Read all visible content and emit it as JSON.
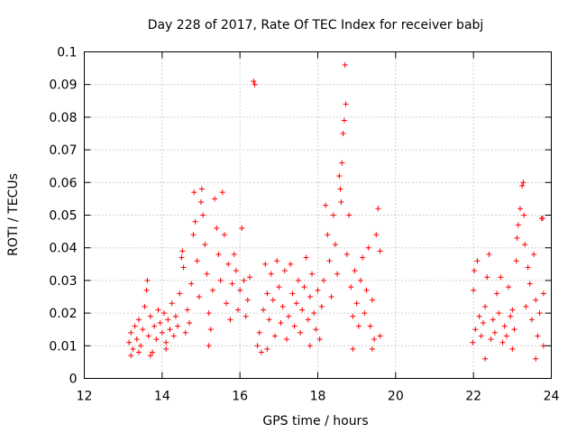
{
  "chart_data": {
    "type": "scatter",
    "title": "Day 228 of 2017, Rate Of TEC Index for receiver babj",
    "xlabel": "GPS time / hours",
    "ylabel": "ROTI / TECUs",
    "xlim": [
      12,
      24
    ],
    "ylim": [
      0,
      0.1
    ],
    "xticks": [
      12,
      14,
      16,
      18,
      20,
      22,
      24
    ],
    "yticks": [
      0,
      0.01,
      0.02,
      0.03,
      0.04,
      0.05,
      0.06,
      0.07,
      0.08,
      0.09,
      0.1
    ],
    "grid": true,
    "marker": "plus",
    "color": "#ff0000",
    "series": [
      {
        "values_note": "",
        "points": [
          [
            13.15,
            0.011
          ],
          [
            13.2,
            0.014
          ],
          [
            13.25,
            0.009
          ],
          [
            13.3,
            0.016
          ],
          [
            13.35,
            0.012
          ],
          [
            13.4,
            0.018
          ],
          [
            13.45,
            0.01
          ],
          [
            13.5,
            0.015
          ],
          [
            13.55,
            0.022
          ],
          [
            13.6,
            0.027
          ],
          [
            13.62,
            0.03
          ],
          [
            13.65,
            0.013
          ],
          [
            13.7,
            0.019
          ],
          [
            13.75,
            0.008
          ],
          [
            13.8,
            0.016
          ],
          [
            13.85,
            0.012
          ],
          [
            13.9,
            0.021
          ],
          [
            13.95,
            0.017
          ],
          [
            14.0,
            0.014
          ],
          [
            14.05,
            0.02
          ],
          [
            14.1,
            0.011
          ],
          [
            14.15,
            0.018
          ],
          [
            14.2,
            0.015
          ],
          [
            14.25,
            0.023
          ],
          [
            14.3,
            0.013
          ],
          [
            14.35,
            0.019
          ],
          [
            14.4,
            0.016
          ],
          [
            14.45,
            0.026
          ],
          [
            14.5,
            0.037
          ],
          [
            14.52,
            0.039
          ],
          [
            14.55,
            0.034
          ],
          [
            14.6,
            0.014
          ],
          [
            14.65,
            0.021
          ],
          [
            14.7,
            0.017
          ],
          [
            14.75,
            0.029
          ],
          [
            14.8,
            0.044
          ],
          [
            14.82,
            0.057
          ],
          [
            14.85,
            0.048
          ],
          [
            14.9,
            0.036
          ],
          [
            14.95,
            0.025
          ],
          [
            15.0,
            0.054
          ],
          [
            15.02,
            0.058
          ],
          [
            15.05,
            0.05
          ],
          [
            15.1,
            0.041
          ],
          [
            15.15,
            0.032
          ],
          [
            15.2,
            0.02
          ],
          [
            15.25,
            0.015
          ],
          [
            15.3,
            0.027
          ],
          [
            15.35,
            0.055
          ],
          [
            15.4,
            0.046
          ],
          [
            15.45,
            0.038
          ],
          [
            15.5,
            0.03
          ],
          [
            15.55,
            0.057
          ],
          [
            15.6,
            0.044
          ],
          [
            15.65,
            0.023
          ],
          [
            15.7,
            0.035
          ],
          [
            15.75,
            0.018
          ],
          [
            15.8,
            0.029
          ],
          [
            15.85,
            0.038
          ],
          [
            15.9,
            0.033
          ],
          [
            15.95,
            0.021
          ],
          [
            16.0,
            0.027
          ],
          [
            16.05,
            0.046
          ],
          [
            16.1,
            0.03
          ],
          [
            16.15,
            0.019
          ],
          [
            16.2,
            0.024
          ],
          [
            16.25,
            0.031
          ],
          [
            16.35,
            0.091
          ],
          [
            16.38,
            0.09
          ],
          [
            16.45,
            0.01
          ],
          [
            16.5,
            0.014
          ],
          [
            16.55,
            0.008
          ],
          [
            16.6,
            0.021
          ],
          [
            16.65,
            0.035
          ],
          [
            16.7,
            0.026
          ],
          [
            16.75,
            0.018
          ],
          [
            16.8,
            0.032
          ],
          [
            16.85,
            0.024
          ],
          [
            16.9,
            0.013
          ],
          [
            16.95,
            0.036
          ],
          [
            17.0,
            0.028
          ],
          [
            17.05,
            0.017
          ],
          [
            17.1,
            0.022
          ],
          [
            17.15,
            0.033
          ],
          [
            17.2,
            0.012
          ],
          [
            17.25,
            0.019
          ],
          [
            17.3,
            0.035
          ],
          [
            17.35,
            0.026
          ],
          [
            17.4,
            0.016
          ],
          [
            17.45,
            0.023
          ],
          [
            17.5,
            0.03
          ],
          [
            17.55,
            0.014
          ],
          [
            17.6,
            0.021
          ],
          [
            17.65,
            0.028
          ],
          [
            17.7,
            0.037
          ],
          [
            17.75,
            0.018
          ],
          [
            17.8,
            0.025
          ],
          [
            17.85,
            0.032
          ],
          [
            17.9,
            0.02
          ],
          [
            17.95,
            0.015
          ],
          [
            18.0,
            0.027
          ],
          [
            18.05,
            0.012
          ],
          [
            18.1,
            0.022
          ],
          [
            18.15,
            0.03
          ],
          [
            18.2,
            0.053
          ],
          [
            18.25,
            0.044
          ],
          [
            18.3,
            0.036
          ],
          [
            18.35,
            0.025
          ],
          [
            18.4,
            0.05
          ],
          [
            18.45,
            0.041
          ],
          [
            18.5,
            0.032
          ],
          [
            18.55,
            0.062
          ],
          [
            18.58,
            0.058
          ],
          [
            18.6,
            0.054
          ],
          [
            18.62,
            0.066
          ],
          [
            18.65,
            0.075
          ],
          [
            18.68,
            0.079
          ],
          [
            18.7,
            0.096
          ],
          [
            18.72,
            0.084
          ],
          [
            18.75,
            0.038
          ],
          [
            18.8,
            0.05
          ],
          [
            18.85,
            0.028
          ],
          [
            18.9,
            0.019
          ],
          [
            18.95,
            0.033
          ],
          [
            19.0,
            0.023
          ],
          [
            19.05,
            0.016
          ],
          [
            19.1,
            0.03
          ],
          [
            19.15,
            0.037
          ],
          [
            19.2,
            0.02
          ],
          [
            19.25,
            0.027
          ],
          [
            19.3,
            0.04
          ],
          [
            19.35,
            0.016
          ],
          [
            19.4,
            0.024
          ],
          [
            19.45,
            0.012
          ],
          [
            19.5,
            0.044
          ],
          [
            19.55,
            0.052
          ],
          [
            19.6,
            0.039
          ],
          [
            19.6,
            0.013
          ],
          [
            13.2,
            0.007
          ],
          [
            13.4,
            0.008
          ],
          [
            13.7,
            0.007
          ],
          [
            14.1,
            0.009
          ],
          [
            15.2,
            0.01
          ],
          [
            16.7,
            0.009
          ],
          [
            17.8,
            0.01
          ],
          [
            18.9,
            0.009
          ],
          [
            19.4,
            0.009
          ],
          [
            21.98,
            0.011
          ],
          [
            22.0,
            0.027
          ],
          [
            22.02,
            0.033
          ],
          [
            22.05,
            0.015
          ],
          [
            22.1,
            0.036
          ],
          [
            22.15,
            0.019
          ],
          [
            22.2,
            0.013
          ],
          [
            22.25,
            0.017
          ],
          [
            22.3,
            0.022
          ],
          [
            22.35,
            0.031
          ],
          [
            22.4,
            0.038
          ],
          [
            22.45,
            0.012
          ],
          [
            22.5,
            0.018
          ],
          [
            22.55,
            0.014
          ],
          [
            22.6,
            0.026
          ],
          [
            22.65,
            0.02
          ],
          [
            22.7,
            0.031
          ],
          [
            22.75,
            0.011
          ],
          [
            22.8,
            0.016
          ],
          [
            22.85,
            0.013
          ],
          [
            22.9,
            0.028
          ],
          [
            22.95,
            0.019
          ],
          [
            23.0,
            0.021
          ],
          [
            23.05,
            0.015
          ],
          [
            23.1,
            0.036
          ],
          [
            23.12,
            0.043
          ],
          [
            23.15,
            0.047
          ],
          [
            23.2,
            0.052
          ],
          [
            23.25,
            0.059
          ],
          [
            23.28,
            0.06
          ],
          [
            23.3,
            0.05
          ],
          [
            23.32,
            0.041
          ],
          [
            23.35,
            0.022
          ],
          [
            23.4,
            0.034
          ],
          [
            23.45,
            0.029
          ],
          [
            23.5,
            0.018
          ],
          [
            23.55,
            0.038
          ],
          [
            23.6,
            0.024
          ],
          [
            23.65,
            0.013
          ],
          [
            23.7,
            0.02
          ],
          [
            23.75,
            0.049
          ],
          [
            23.78,
            0.049
          ],
          [
            23.8,
            0.026
          ],
          [
            23.8,
            0.01
          ],
          [
            22.3,
            0.006
          ],
          [
            23.0,
            0.009
          ],
          [
            23.6,
            0.006
          ]
        ]
      }
    ]
  }
}
